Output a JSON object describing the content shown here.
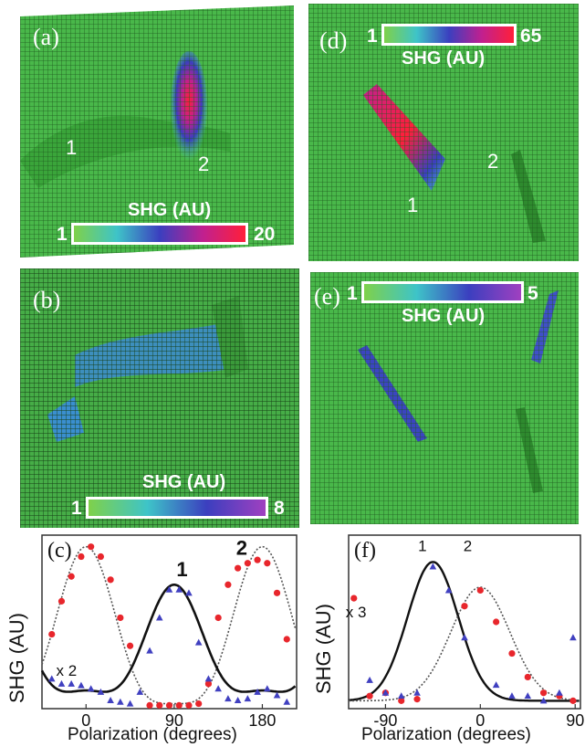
{
  "panels": {
    "a": {
      "label": "(a)",
      "marks": [
        "1",
        "2"
      ],
      "colorbar": {
        "title": "SHG (AU)",
        "min": "1",
        "max": "20"
      }
    },
    "b": {
      "label": "(b)",
      "colorbar": {
        "title": "SHG (AU)",
        "min": "1",
        "max": "8"
      }
    },
    "d": {
      "label": "(d)",
      "marks": [
        "1",
        "2"
      ],
      "colorbar": {
        "title": "SHG (AU)",
        "min": "1",
        "max": "65"
      }
    },
    "e": {
      "label": "(e)",
      "colorbar": {
        "title": "SHG (AU)",
        "min": "1",
        "max": "5"
      }
    }
  },
  "colors": {
    "surface": "#3fae3f",
    "low": "#7fd14a",
    "mid": "#3b3fbf",
    "high": "#ff1f3a",
    "red_points": "#e8262c",
    "blue_points": "#4040c0"
  },
  "chart_data": [
    {
      "type": "scatter",
      "panel_label": "(c)",
      "xlabel": "Polarization (degrees)",
      "ylabel": "SHG (AU)",
      "xlim": [
        -45,
        215
      ],
      "ylim": [
        0,
        1.05
      ],
      "xticks": [
        0,
        90,
        180
      ],
      "xtick_labels": [
        "0",
        "90",
        "180"
      ],
      "annotations": [
        {
          "text": "1"
        },
        {
          "text": "2"
        },
        {
          "text": "x 2"
        }
      ],
      "series": [
        {
          "name": "2",
          "color": "#e8262c",
          "marker": "circle",
          "x": [
            -35,
            -25,
            -15,
            -5,
            5,
            15,
            25,
            35,
            45,
            65,
            75,
            85,
            95,
            105,
            115,
            125,
            135,
            145,
            155,
            165,
            175,
            185,
            195,
            205
          ],
          "y": [
            0.45,
            0.65,
            0.8,
            0.92,
            0.98,
            0.92,
            0.78,
            0.55,
            0.38,
            0.02,
            0.02,
            0.02,
            0.02,
            0.02,
            0.03,
            0.15,
            0.55,
            0.75,
            0.85,
            0.88,
            0.9,
            0.88,
            0.7,
            0.42
          ]
        },
        {
          "name": "1",
          "color": "#4040c0",
          "marker": "triangle",
          "x": [
            -35,
            -25,
            -15,
            -5,
            5,
            15,
            25,
            35,
            45,
            55,
            65,
            75,
            85,
            95,
            105,
            115,
            125,
            135,
            145,
            155,
            165,
            175,
            185,
            195,
            205
          ],
          "y": [
            0.18,
            0.15,
            0.15,
            0.14,
            0.12,
            0.1,
            0.05,
            0.04,
            0.03,
            0.1,
            0.35,
            0.55,
            0.72,
            0.72,
            0.7,
            0.4,
            0.18,
            0.12,
            0.06,
            0.05,
            0.06,
            0.1,
            0.12,
            0.08,
            0.04
          ]
        }
      ]
    },
    {
      "type": "scatter",
      "panel_label": "(f)",
      "xlabel": "Polarization (degrees)",
      "ylabel": "SHG (AU)",
      "xlim": [
        -125,
        95
      ],
      "ylim": [
        0,
        1.1
      ],
      "xticks": [
        -90,
        0,
        90
      ],
      "xtick_labels": [
        "-90",
        "0",
        "90"
      ],
      "annotations": [
        {
          "text": "1"
        },
        {
          "text": "2"
        },
        {
          "text": "x 3"
        }
      ],
      "series": [
        {
          "name": "2",
          "color": "#e8262c",
          "marker": "circle",
          "x": [
            -120,
            -105,
            -90,
            -75,
            -60,
            -15,
            0,
            15,
            30,
            45,
            60,
            75,
            88
          ],
          "y": [
            0.7,
            0.08,
            0.1,
            0.05,
            0.06,
            0.65,
            0.75,
            0.55,
            0.35,
            0.2,
            0.1,
            0.08,
            0.05
          ]
        },
        {
          "name": "1",
          "color": "#4040c0",
          "marker": "triangle",
          "x": [
            -105,
            -90,
            -75,
            -60,
            -45,
            -30,
            -15,
            15,
            30,
            45,
            60,
            75,
            88
          ],
          "y": [
            0.18,
            0.1,
            0.08,
            0.1,
            0.9,
            0.75,
            0.45,
            0.15,
            0.08,
            0.08,
            0.05,
            0.1,
            0.45
          ]
        }
      ]
    }
  ]
}
